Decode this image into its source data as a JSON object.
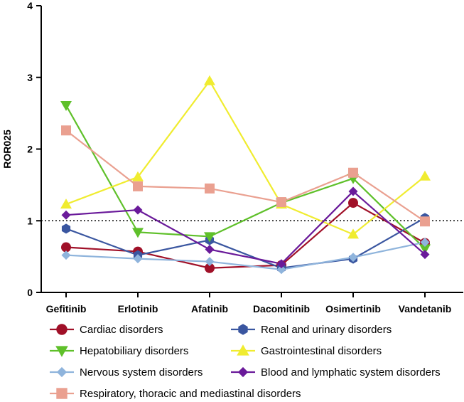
{
  "chart_data": {
    "type": "line",
    "title": "",
    "xlabel": "",
    "ylabel": "ROR025",
    "ylim": [
      0,
      4
    ],
    "yticks": [
      "0",
      "1",
      "2",
      "3",
      "4"
    ],
    "reference_line": {
      "y": 1,
      "style": "dotted"
    },
    "categories": [
      "Gefitinib",
      "Erlotinib",
      "Afatinib",
      "Dacomitinib",
      "Osimertinib",
      "Vandetanib"
    ],
    "legend_position": "bottom",
    "series": [
      {
        "name": "Cardiac disorders",
        "color": "#a01028",
        "marker": "circle",
        "values": [
          0.63,
          0.57,
          0.34,
          0.38,
          1.25,
          0.69
        ]
      },
      {
        "name": "Renal and urinary disorders",
        "color": "#3a56a0",
        "marker": "hexagon",
        "values": [
          0.89,
          0.52,
          0.73,
          0.34,
          0.47,
          1.04
        ]
      },
      {
        "name": "Hepatobiliary disorders",
        "color": "#5fc02a",
        "marker": "triangle-down",
        "values": [
          2.61,
          0.84,
          0.78,
          1.25,
          1.59,
          0.61
        ]
      },
      {
        "name": "Gastrointestinal disorders",
        "color": "#f0ec30",
        "marker": "triangle-up",
        "values": [
          1.23,
          1.61,
          2.95,
          1.23,
          0.81,
          1.62
        ]
      },
      {
        "name": "Nervous system disorders",
        "color": "#8fb4dc",
        "marker": "diamond",
        "values": [
          0.52,
          0.47,
          0.43,
          0.32,
          0.49,
          0.7
        ]
      },
      {
        "name": "Blood and lymphatic system disorders",
        "color": "#6a1a9a",
        "marker": "diamond",
        "values": [
          1.08,
          1.15,
          0.6,
          0.4,
          1.41,
          0.53
        ]
      },
      {
        "name": "Respiratory, thoracic and mediastinal disorders",
        "color": "#eaa090",
        "marker": "square",
        "values": [
          2.26,
          1.48,
          1.45,
          1.26,
          1.67,
          0.99
        ]
      }
    ]
  }
}
